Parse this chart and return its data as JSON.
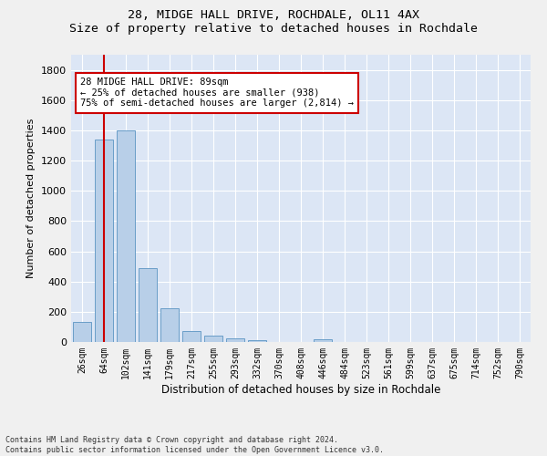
{
  "title": "28, MIDGE HALL DRIVE, ROCHDALE, OL11 4AX",
  "subtitle": "Size of property relative to detached houses in Rochdale",
  "xlabel": "Distribution of detached houses by size in Rochdale",
  "ylabel": "Number of detached properties",
  "bar_labels": [
    "26sqm",
    "64sqm",
    "102sqm",
    "141sqm",
    "179sqm",
    "217sqm",
    "255sqm",
    "293sqm",
    "332sqm",
    "370sqm",
    "408sqm",
    "446sqm",
    "484sqm",
    "523sqm",
    "561sqm",
    "599sqm",
    "637sqm",
    "675sqm",
    "714sqm",
    "752sqm",
    "790sqm"
  ],
  "bar_values": [
    135,
    1340,
    1400,
    490,
    225,
    75,
    42,
    25,
    12,
    0,
    0,
    18,
    0,
    0,
    0,
    0,
    0,
    0,
    0,
    0,
    0
  ],
  "bar_color": "#b8cfe8",
  "bar_edge_color": "#6a9ec8",
  "vline_x": 1.0,
  "vline_color": "#cc0000",
  "annotation_text_line1": "28 MIDGE HALL DRIVE: 89sqm",
  "annotation_text_line2": "← 25% of detached houses are smaller (938)",
  "annotation_text_line3": "75% of semi-detached houses are larger (2,814) →",
  "ylim": [
    0,
    1900
  ],
  "yticks": [
    0,
    200,
    400,
    600,
    800,
    1000,
    1200,
    1400,
    1600,
    1800
  ],
  "footer_line1": "Contains HM Land Registry data © Crown copyright and database right 2024.",
  "footer_line2": "Contains public sector information licensed under the Open Government Licence v3.0.",
  "fig_bg_color": "#f0f0f0",
  "plot_bg_color": "#dce6f5"
}
